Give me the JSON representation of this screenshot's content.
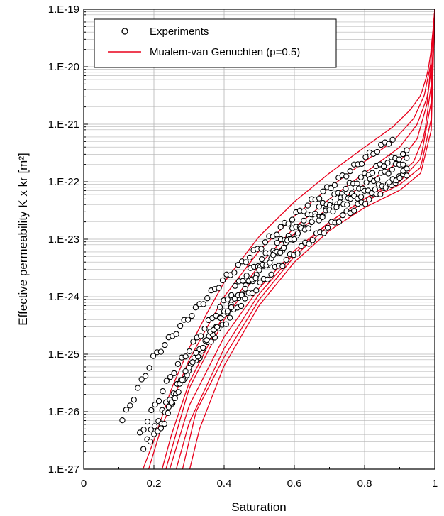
{
  "chart_data": {
    "type": "scatter",
    "xlabel": "Saturation",
    "ylabel": "Effective permeability K x kr [m²]",
    "xlim": [
      0,
      1
    ],
    "ylim": [
      1e-27,
      1e-19
    ],
    "yscale": "log",
    "grid": true,
    "legend_position": "top-left",
    "x_tick_labels": [
      "0",
      "0.2",
      "0.4",
      "0.6",
      "0.8",
      "1"
    ],
    "y_tick_labels": [
      "1.E-27",
      "1.E-26",
      "1.E-25",
      "1.E-24",
      "1.E-23",
      "1.E-22",
      "1.E-21",
      "1.E-20",
      "1.E-19"
    ],
    "colors": {
      "model": "#e8001c",
      "experiments": "#000000",
      "grid": "#b4b4b4"
    },
    "series": [
      {
        "name": "Experiments",
        "kind": "markers",
        "marker": "open-circle",
        "groups": [
          {
            "x": [
              0.11,
              0.2,
              0.3,
              0.4,
              0.5,
              0.6,
              0.7,
              0.8,
              0.88
            ],
            "log10_y": [
              -26.15,
              -25.05,
              -24.35,
              -23.7,
              -23.15,
              -22.6,
              -22.1,
              -21.6,
              -21.25
            ]
          },
          {
            "x": [
              0.16,
              0.25,
              0.35,
              0.45,
              0.55,
              0.65,
              0.75,
              0.85,
              0.92
            ],
            "log10_y": [
              -26.4,
              -25.35,
              -24.5,
              -23.7,
              -23.1,
              -22.55,
              -22.1,
              -21.7,
              -21.5
            ]
          },
          {
            "x": [
              0.17,
              0.25,
              0.35,
              0.45,
              0.55,
              0.65,
              0.75,
              0.85,
              0.92
            ],
            "log10_y": [
              -26.6,
              -25.7,
              -24.85,
              -24.1,
              -23.5,
              -23.0,
              -22.55,
              -22.15,
              -21.85
            ]
          },
          {
            "x": [
              0.19,
              0.3,
              0.4,
              0.5,
              0.6,
              0.7,
              0.8,
              0.9,
              0.92
            ],
            "log10_y": [
              -26.55,
              -25.25,
              -24.3,
              -23.55,
              -22.95,
              -22.45,
              -22.05,
              -21.7,
              -21.6
            ]
          },
          {
            "x": [
              0.22,
              0.3,
              0.4,
              0.5,
              0.6,
              0.7,
              0.8,
              0.88,
              0.92
            ],
            "log10_y": [
              -26.3,
              -25.2,
              -24.3,
              -23.55,
              -22.95,
              -22.5,
              -22.2,
              -22.0,
              -21.8
            ]
          }
        ]
      },
      {
        "name": "Mualem-van Genuchten (p=0.5)",
        "kind": "lines",
        "curves": [
          {
            "x": [
              0.15,
              0.2,
              0.25,
              0.3,
              0.35,
              0.4,
              0.5,
              0.6,
              0.7,
              0.8,
              0.88,
              0.93,
              0.96,
              0.98,
              0.99,
              1.0
            ],
            "log10_y": [
              -27.3,
              -26.5,
              -25.6,
              -24.9,
              -24.3,
              -23.75,
              -22.95,
              -22.35,
              -21.85,
              -21.4,
              -21.05,
              -20.75,
              -20.5,
              -20.1,
              -19.7,
              -19.0
            ]
          },
          {
            "x": [
              0.17,
              0.22,
              0.3,
              0.4,
              0.5,
              0.6,
              0.7,
              0.8,
              0.88,
              0.94,
              0.97,
              0.99,
              1.0
            ],
            "log10_y": [
              -27.3,
              -26.3,
              -25.1,
              -24.0,
              -23.2,
              -22.6,
              -22.1,
              -21.65,
              -21.3,
              -20.9,
              -20.5,
              -19.9,
              -19.0
            ]
          },
          {
            "x": [
              0.21,
              0.25,
              0.3,
              0.4,
              0.5,
              0.6,
              0.7,
              0.8,
              0.9,
              0.95,
              0.98,
              0.995,
              1.0
            ],
            "log10_y": [
              -27.3,
              -26.4,
              -25.5,
              -24.3,
              -23.45,
              -22.8,
              -22.3,
              -21.85,
              -21.4,
              -21.0,
              -20.5,
              -19.8,
              -19.0
            ]
          },
          {
            "x": [
              0.22,
              0.3,
              0.4,
              0.5,
              0.6,
              0.7,
              0.8,
              0.9,
              0.95,
              0.98,
              1.0
            ],
            "log10_y": [
              -27.3,
              -25.6,
              -24.4,
              -23.55,
              -22.9,
              -22.45,
              -22.05,
              -21.65,
              -21.25,
              -20.6,
              -19.0
            ]
          },
          {
            "x": [
              0.23,
              0.3,
              0.4,
              0.5,
              0.6,
              0.7,
              0.8,
              0.88,
              0.94,
              0.97,
              0.99,
              1.0
            ],
            "log10_y": [
              -27.3,
              -25.9,
              -24.7,
              -23.85,
              -23.2,
              -22.7,
              -22.3,
              -22.0,
              -21.65,
              -21.2,
              -20.3,
              -19.0
            ]
          },
          {
            "x": [
              0.25,
              0.3,
              0.4,
              0.5,
              0.6,
              0.7,
              0.8,
              0.9,
              0.96,
              0.99,
              1.0
            ],
            "log10_y": [
              -27.3,
              -26.2,
              -24.9,
              -23.95,
              -23.25,
              -22.7,
              -22.3,
              -22.0,
              -21.6,
              -20.6,
              -19.0
            ]
          },
          {
            "x": [
              0.27,
              0.32,
              0.4,
              0.5,
              0.6,
              0.7,
              0.8,
              0.9,
              0.96,
              0.99,
              1.0
            ],
            "log10_y": [
              -27.3,
              -26.0,
              -25.05,
              -24.05,
              -23.3,
              -22.75,
              -22.35,
              -22.05,
              -21.75,
              -20.9,
              -19.0
            ]
          },
          {
            "x": [
              0.29,
              0.33,
              0.4,
              0.5,
              0.6,
              0.7,
              0.8,
              0.9,
              0.96,
              0.99,
              1.0
            ],
            "log10_y": [
              -27.3,
              -26.3,
              -25.2,
              -24.15,
              -23.4,
              -22.85,
              -22.45,
              -22.15,
              -21.85,
              -21.1,
              -19.0
            ]
          }
        ]
      }
    ]
  }
}
